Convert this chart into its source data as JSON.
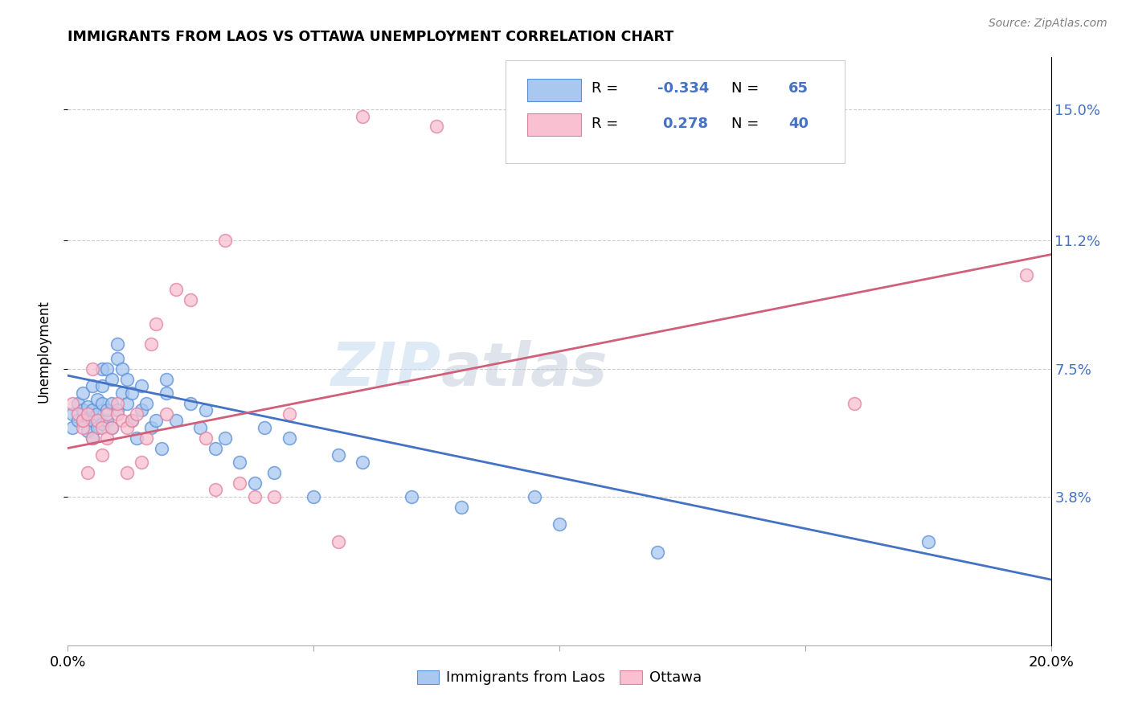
{
  "title": "IMMIGRANTS FROM LAOS VS OTTAWA UNEMPLOYMENT CORRELATION CHART",
  "source": "Source: ZipAtlas.com",
  "ylabel": "Unemployment",
  "xlim": [
    0.0,
    0.2
  ],
  "ylim": [
    -0.005,
    0.165
  ],
  "yticks": [
    0.038,
    0.075,
    0.112,
    0.15
  ],
  "ytick_labels": [
    "3.8%",
    "7.5%",
    "11.2%",
    "15.0%"
  ],
  "xticks": [
    0.0,
    0.05,
    0.1,
    0.15,
    0.2
  ],
  "xtick_labels": [
    "0.0%",
    "",
    "",
    "",
    "20.0%"
  ],
  "blue_fill_color": "#A8C8F0",
  "blue_edge_color": "#5B8ED6",
  "pink_fill_color": "#F8C0D0",
  "pink_edge_color": "#E080A0",
  "blue_line_color": "#4472C4",
  "pink_line_color": "#D0607A",
  "legend_text_color": "#4472C4",
  "watermark_color": "#C8DCF0",
  "blue_points_x": [
    0.001,
    0.001,
    0.002,
    0.002,
    0.003,
    0.003,
    0.003,
    0.004,
    0.004,
    0.004,
    0.005,
    0.005,
    0.005,
    0.005,
    0.006,
    0.006,
    0.006,
    0.007,
    0.007,
    0.007,
    0.007,
    0.008,
    0.008,
    0.008,
    0.009,
    0.009,
    0.009,
    0.01,
    0.01,
    0.01,
    0.011,
    0.011,
    0.012,
    0.012,
    0.013,
    0.013,
    0.014,
    0.015,
    0.015,
    0.016,
    0.017,
    0.018,
    0.019,
    0.02,
    0.02,
    0.022,
    0.025,
    0.027,
    0.028,
    0.03,
    0.032,
    0.035,
    0.038,
    0.04,
    0.042,
    0.045,
    0.05,
    0.055,
    0.06,
    0.07,
    0.08,
    0.095,
    0.1,
    0.12,
    0.175
  ],
  "blue_points_y": [
    0.062,
    0.058,
    0.065,
    0.06,
    0.06,
    0.063,
    0.068,
    0.057,
    0.061,
    0.064,
    0.055,
    0.06,
    0.063,
    0.07,
    0.058,
    0.062,
    0.066,
    0.059,
    0.065,
    0.07,
    0.075,
    0.06,
    0.063,
    0.075,
    0.058,
    0.065,
    0.072,
    0.063,
    0.078,
    0.082,
    0.068,
    0.075,
    0.065,
    0.072,
    0.06,
    0.068,
    0.055,
    0.063,
    0.07,
    0.065,
    0.058,
    0.06,
    0.052,
    0.068,
    0.072,
    0.06,
    0.065,
    0.058,
    0.063,
    0.052,
    0.055,
    0.048,
    0.042,
    0.058,
    0.045,
    0.055,
    0.038,
    0.05,
    0.048,
    0.038,
    0.035,
    0.038,
    0.03,
    0.022,
    0.025
  ],
  "pink_points_x": [
    0.001,
    0.002,
    0.003,
    0.003,
    0.004,
    0.004,
    0.005,
    0.005,
    0.006,
    0.007,
    0.007,
    0.008,
    0.008,
    0.009,
    0.01,
    0.01,
    0.011,
    0.012,
    0.012,
    0.013,
    0.014,
    0.015,
    0.016,
    0.017,
    0.018,
    0.02,
    0.022,
    0.025,
    0.028,
    0.03,
    0.032,
    0.035,
    0.038,
    0.042,
    0.045,
    0.055,
    0.06,
    0.075,
    0.16,
    0.195
  ],
  "pink_points_y": [
    0.065,
    0.062,
    0.058,
    0.06,
    0.062,
    0.045,
    0.055,
    0.075,
    0.06,
    0.05,
    0.058,
    0.055,
    0.062,
    0.058,
    0.062,
    0.065,
    0.06,
    0.058,
    0.045,
    0.06,
    0.062,
    0.048,
    0.055,
    0.082,
    0.088,
    0.062,
    0.098,
    0.095,
    0.055,
    0.04,
    0.112,
    0.042,
    0.038,
    0.038,
    0.062,
    0.025,
    0.148,
    0.145,
    0.065,
    0.102
  ],
  "blue_trend_start_y": 0.073,
  "blue_trend_end_y": 0.014,
  "pink_trend_start_y": 0.052,
  "pink_trend_end_y": 0.108
}
